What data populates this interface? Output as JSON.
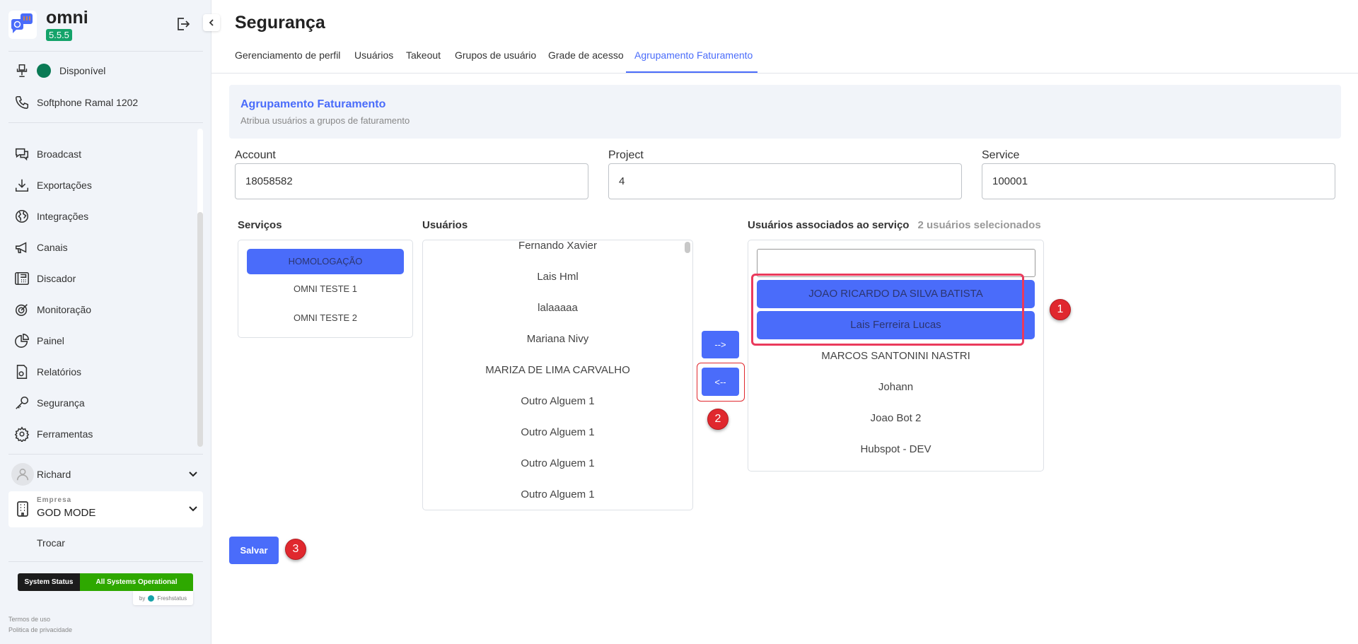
{
  "app": {
    "name": "omni",
    "version": "5.5.5"
  },
  "sidebar": {
    "status": {
      "label": "Disponível",
      "color": "#0a7a55"
    },
    "softphone": "Softphone Ramal 1202",
    "items": [
      {
        "label": "Broadcast",
        "icon": "chat-bubbles-icon"
      },
      {
        "label": "Exportações",
        "icon": "download-icon"
      },
      {
        "label": "Integrações",
        "icon": "globe-icon"
      },
      {
        "label": "Canais",
        "icon": "megaphone-icon"
      },
      {
        "label": "Discador",
        "icon": "desk-phone-icon"
      },
      {
        "label": "Monitoração",
        "icon": "target-icon"
      },
      {
        "label": "Painel",
        "icon": "pie-chart-icon"
      },
      {
        "label": "Relatórios",
        "icon": "report-file-icon"
      },
      {
        "label": "Segurança",
        "icon": "key-icon"
      },
      {
        "label": "Ferramentas",
        "icon": "gear-icon"
      }
    ],
    "user": "Richard",
    "company": {
      "caption": "Empresa",
      "name": "GOD MODE"
    },
    "switch": "Trocar",
    "system_status": {
      "label": "System Status",
      "value": "All Systems Operational",
      "by": "by",
      "provider": "Freshstatus"
    },
    "terms": "Termos de uso",
    "privacy": "Politica de privacidade"
  },
  "page": {
    "title": "Segurança",
    "tabs": [
      "Gerenciamento de perfil",
      "Usuários",
      "Takeout",
      "Grupos de usuário",
      "Grade de acesso",
      "Agrupamento Faturamento"
    ],
    "active_tab": 5,
    "section": {
      "title": "Agrupamento Faturamento",
      "subtitle": "Atribua usuários a grupos de faturamento"
    },
    "fields": {
      "account": {
        "label": "Account",
        "value": "18058582"
      },
      "project": {
        "label": "Project",
        "value": "4"
      },
      "service": {
        "label": "Service",
        "value": "100001"
      }
    },
    "services": {
      "label": "Serviços",
      "items": [
        "HOMOLOGAÇÃO",
        "OMNI TESTE 1",
        "OMNI TESTE 2"
      ],
      "selected": 0
    },
    "users": {
      "label": "Usuários",
      "items": [
        "Fernando Xavier",
        "Lais Hml",
        "lalaaaaa",
        "Mariana Nivy",
        "MARIZA DE LIMA CARVALHO",
        "Outro Alguem 1",
        "Outro Alguem 1",
        "Outro Alguem 1",
        "Outro Alguem 1"
      ]
    },
    "move_right": "-->",
    "move_left": "<--",
    "associated": {
      "label": "Usuários associados ao serviço",
      "count_label": "2 usuários selecionados",
      "search_value": "",
      "selected": [
        "JOAO RICARDO DA SILVA BATISTA",
        "Lais Ferreira Lucas"
      ],
      "items": [
        "MARCOS SANTONINI NASTRI",
        "Johann",
        "Joao Bot 2",
        "Hubspot - DEV"
      ]
    },
    "save": "Salvar",
    "accent": "#4a6cfa"
  },
  "annotations": [
    "1",
    "2",
    "3"
  ]
}
